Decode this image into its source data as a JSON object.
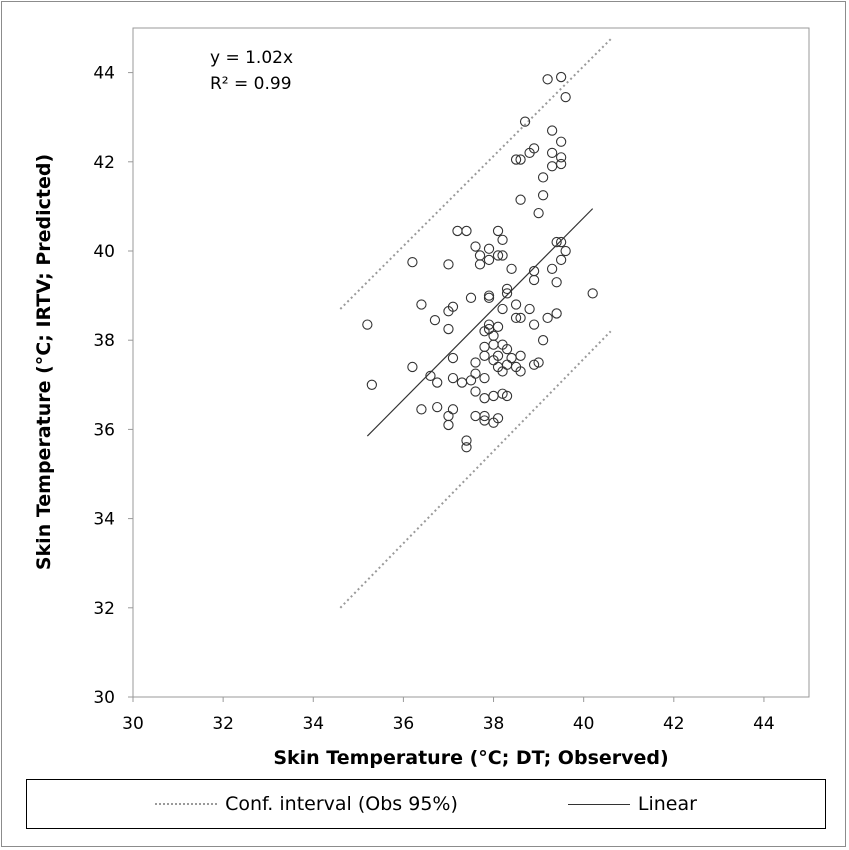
{
  "chart_data": {
    "type": "scatter",
    "xlabel": "Skin Temperature (°C; DT; Observed)",
    "ylabel": "Skin Temperature (°C; IRTV; Predicted)",
    "xlim": [
      30,
      45
    ],
    "ylim": [
      30,
      45
    ],
    "xticks": [
      30,
      32,
      34,
      36,
      38,
      40,
      42,
      44
    ],
    "yticks": [
      30,
      32,
      34,
      36,
      38,
      40,
      42,
      44
    ],
    "grid": false,
    "legend_position": "bottom",
    "annotations": [
      "y = 1.02x",
      "R² = 0.99"
    ],
    "legend": [
      "Conf. interval (Obs 95%)",
      "Linear"
    ],
    "series": [
      {
        "kind": "points",
        "marker": "open-circle",
        "points": [
          [
            35.2,
            38.35
          ],
          [
            35.3,
            37.0
          ],
          [
            36.2,
            39.75
          ],
          [
            36.2,
            37.4
          ],
          [
            36.4,
            38.8
          ],
          [
            36.4,
            36.45
          ],
          [
            36.6,
            37.2
          ],
          [
            36.7,
            38.45
          ],
          [
            36.75,
            37.05
          ],
          [
            36.75,
            36.5
          ],
          [
            37.0,
            39.7
          ],
          [
            37.0,
            38.65
          ],
          [
            37.0,
            38.25
          ],
          [
            37.0,
            36.3
          ],
          [
            37.0,
            36.1
          ],
          [
            37.1,
            38.75
          ],
          [
            37.1,
            37.6
          ],
          [
            37.1,
            37.15
          ],
          [
            37.1,
            36.45
          ],
          [
            37.2,
            40.45
          ],
          [
            37.3,
            37.05
          ],
          [
            37.4,
            40.45
          ],
          [
            37.4,
            35.75
          ],
          [
            37.4,
            35.6
          ],
          [
            37.5,
            38.95
          ],
          [
            37.5,
            37.1
          ],
          [
            37.6,
            40.1
          ],
          [
            37.6,
            37.5
          ],
          [
            37.6,
            37.25
          ],
          [
            37.6,
            36.85
          ],
          [
            37.6,
            36.3
          ],
          [
            37.7,
            39.9
          ],
          [
            37.7,
            39.7
          ],
          [
            37.8,
            38.2
          ],
          [
            37.8,
            37.85
          ],
          [
            37.8,
            37.65
          ],
          [
            37.8,
            37.15
          ],
          [
            37.8,
            36.7
          ],
          [
            37.8,
            36.3
          ],
          [
            37.8,
            36.2
          ],
          [
            37.9,
            40.05
          ],
          [
            37.9,
            39.8
          ],
          [
            37.9,
            38.95
          ],
          [
            37.9,
            39.0
          ],
          [
            37.9,
            38.35
          ],
          [
            37.9,
            38.25
          ],
          [
            38.0,
            38.1
          ],
          [
            38.0,
            37.9
          ],
          [
            38.0,
            37.55
          ],
          [
            38.0,
            36.75
          ],
          [
            38.0,
            36.15
          ],
          [
            38.1,
            40.45
          ],
          [
            38.1,
            39.9
          ],
          [
            38.1,
            38.3
          ],
          [
            38.1,
            37.65
          ],
          [
            38.1,
            37.4
          ],
          [
            38.1,
            36.25
          ],
          [
            38.2,
            40.25
          ],
          [
            38.2,
            39.9
          ],
          [
            38.2,
            38.7
          ],
          [
            38.2,
            37.9
          ],
          [
            38.2,
            37.3
          ],
          [
            38.2,
            36.8
          ],
          [
            38.3,
            39.15
          ],
          [
            38.3,
            39.05
          ],
          [
            38.3,
            37.8
          ],
          [
            38.3,
            37.45
          ],
          [
            38.3,
            36.75
          ],
          [
            38.4,
            39.6
          ],
          [
            38.4,
            37.6
          ],
          [
            38.5,
            42.05
          ],
          [
            38.5,
            38.8
          ],
          [
            38.5,
            38.5
          ],
          [
            38.5,
            37.4
          ],
          [
            38.6,
            42.05
          ],
          [
            38.6,
            41.15
          ],
          [
            38.6,
            38.5
          ],
          [
            38.6,
            37.65
          ],
          [
            38.6,
            37.3
          ],
          [
            38.7,
            42.9
          ],
          [
            38.8,
            38.7
          ],
          [
            38.8,
            42.2
          ],
          [
            38.9,
            42.3
          ],
          [
            38.9,
            39.55
          ],
          [
            38.9,
            39.35
          ],
          [
            38.9,
            38.35
          ],
          [
            38.9,
            37.45
          ],
          [
            39.0,
            40.85
          ],
          [
            39.0,
            37.5
          ],
          [
            39.1,
            41.65
          ],
          [
            39.1,
            41.25
          ],
          [
            39.1,
            38.0
          ],
          [
            39.2,
            43.85
          ],
          [
            39.2,
            38.5
          ],
          [
            39.3,
            42.7
          ],
          [
            39.3,
            42.2
          ],
          [
            39.3,
            41.9
          ],
          [
            39.3,
            39.6
          ],
          [
            39.4,
            40.2
          ],
          [
            39.4,
            39.3
          ],
          [
            39.4,
            38.6
          ],
          [
            39.5,
            43.9
          ],
          [
            39.5,
            42.45
          ],
          [
            39.5,
            42.1
          ],
          [
            39.5,
            41.95
          ],
          [
            39.5,
            40.2
          ],
          [
            39.5,
            39.8
          ],
          [
            39.6,
            43.45
          ],
          [
            39.6,
            40.0
          ],
          [
            40.2,
            39.05
          ]
        ]
      },
      {
        "name": "Linear",
        "kind": "line",
        "style": "solid",
        "color": "#333333",
        "x": [
          35.2,
          40.2
        ],
        "y": [
          35.85,
          40.95
        ]
      },
      {
        "name": "Conf. interval (Obs 95%)",
        "kind": "line",
        "style": "dotted",
        "color": "#9a9a9a",
        "x": [
          34.6,
          40.6
        ],
        "y": [
          38.7,
          44.75
        ]
      },
      {
        "name": "Conf. interval (Obs 95%)",
        "kind": "line",
        "style": "dotted",
        "color": "#9a9a9a",
        "x": [
          34.6,
          40.6
        ],
        "y": [
          32.0,
          38.2
        ]
      }
    ]
  }
}
